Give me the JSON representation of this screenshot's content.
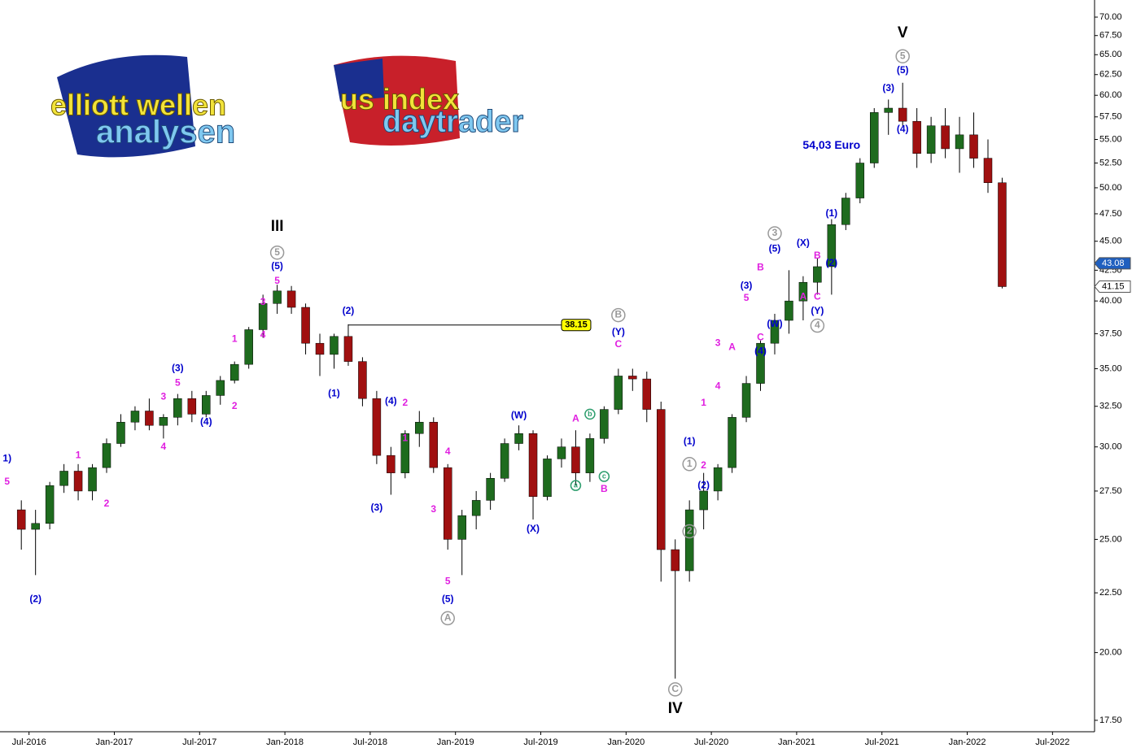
{
  "chart_data": {
    "type": "candlestick",
    "log_scale": true,
    "xlim": [
      "2016-05",
      "2022-10"
    ],
    "ylim": [
      17.11,
      72.4
    ],
    "xticks": [
      {
        "value": "2016-07",
        "label": "Jul-2016"
      },
      {
        "value": "2017-01",
        "label": "Jan-2017"
      },
      {
        "value": "2017-07",
        "label": "Jul-2017"
      },
      {
        "value": "2018-01",
        "label": "Jan-2018"
      },
      {
        "value": "2018-07",
        "label": "Jul-2018"
      },
      {
        "value": "2019-01",
        "label": "Jan-2019"
      },
      {
        "value": "2019-07",
        "label": "Jul-2019"
      },
      {
        "value": "2020-01",
        "label": "Jan-2020"
      },
      {
        "value": "2020-07",
        "label": "Jul-2020"
      },
      {
        "value": "2021-01",
        "label": "Jan-2021"
      },
      {
        "value": "2021-07",
        "label": "Jul-2021"
      },
      {
        "value": "2022-01",
        "label": "Jan-2022"
      },
      {
        "value": "2022-07",
        "label": "Jul-2022"
      }
    ],
    "yticks": [
      {
        "value": 17.5,
        "label": "17.50"
      },
      {
        "value": 20,
        "label": "20.00"
      },
      {
        "value": 22.5,
        "label": "22.50"
      },
      {
        "value": 25,
        "label": "25.00"
      },
      {
        "value": 27.5,
        "label": "27.50"
      },
      {
        "value": 30,
        "label": "30.00"
      },
      {
        "value": 32.5,
        "label": "32.50"
      },
      {
        "value": 35,
        "label": "35.00"
      },
      {
        "value": 37.5,
        "label": "37.50"
      },
      {
        "value": 40,
        "label": "40.00"
      },
      {
        "value": 42.5,
        "label": "42.50"
      },
      {
        "value": 45,
        "label": "45.00"
      },
      {
        "value": 47.5,
        "label": "47.50"
      },
      {
        "value": 50,
        "label": "50.00"
      },
      {
        "value": 52.5,
        "label": "52.50"
      },
      {
        "value": 55,
        "label": "55.00"
      },
      {
        "value": 57.5,
        "label": "57.50"
      },
      {
        "value": 60,
        "label": "60.00"
      },
      {
        "value": 62.5,
        "label": "62.50"
      },
      {
        "value": 65,
        "label": "65.00"
      },
      {
        "value": 67.5,
        "label": "67.50"
      },
      {
        "value": 70,
        "label": "70.00"
      }
    ],
    "up_color": "#1e6b1e",
    "down_color": "#a01010",
    "x": [
      "2016-06",
      "2016-07",
      "2016-08",
      "2016-09",
      "2016-10",
      "2016-11",
      "2016-12",
      "2017-01",
      "2017-02",
      "2017-03",
      "2017-04",
      "2017-05",
      "2017-06",
      "2017-07",
      "2017-08",
      "2017-09",
      "2017-10",
      "2017-11",
      "2017-12",
      "2018-01",
      "2018-02",
      "2018-03",
      "2018-04",
      "2018-05",
      "2018-06",
      "2018-07",
      "2018-08",
      "2018-09",
      "2018-10",
      "2018-11",
      "2018-12",
      "2019-01",
      "2019-02",
      "2019-03",
      "2019-04",
      "2019-05",
      "2019-06",
      "2019-07",
      "2019-08",
      "2019-09",
      "2019-10",
      "2019-11",
      "2019-12",
      "2020-01",
      "2020-02",
      "2020-03",
      "2020-04",
      "2020-05",
      "2020-06",
      "2020-07",
      "2020-08",
      "2020-09",
      "2020-10",
      "2020-11",
      "2020-12",
      "2021-01",
      "2021-02",
      "2021-03",
      "2021-04",
      "2021-05",
      "2021-06",
      "2021-07",
      "2021-08",
      "2021-09",
      "2021-10",
      "2021-11",
      "2021-12",
      "2022-01",
      "2022-02",
      "2022-03"
    ],
    "open": [
      26.5,
      25.5,
      25.8,
      27.8,
      28.6,
      27.5,
      28.8,
      30.2,
      31.5,
      32.2,
      31.3,
      31.8,
      33,
      32,
      33.2,
      34.2,
      35.3,
      37.8,
      39.8,
      40.8,
      39.5,
      36.8,
      36,
      37.3,
      35.5,
      33,
      29.5,
      28.5,
      30.8,
      31.5,
      28.8,
      25,
      26.2,
      27,
      28.2,
      30.2,
      30.8,
      27.2,
      29.3,
      30,
      28.5,
      30.5,
      32.3,
      34.5,
      34.3,
      32.3,
      24.5,
      23.5,
      26.5,
      27.5,
      28.8,
      31.8,
      34,
      36.8,
      38.5,
      40,
      41.5,
      42.8,
      46.5,
      49,
      52.5,
      58,
      58.5,
      57,
      53.5,
      56.5,
      54,
      55.5,
      53,
      50.5
    ],
    "high": [
      27,
      26.5,
      28,
      29,
      29,
      29,
      30.5,
      32,
      32.5,
      33,
      32,
      33.3,
      33.5,
      33.5,
      34.5,
      35.5,
      38,
      40.5,
      41.3,
      41.2,
      39.8,
      37.5,
      37.5,
      38.2,
      35.8,
      33.5,
      30,
      31,
      32.2,
      31.8,
      29,
      26.5,
      27.5,
      28.5,
      30.5,
      31.3,
      31,
      29.5,
      30.5,
      31,
      30.8,
      32.5,
      35,
      35,
      34.8,
      32.8,
      25,
      27,
      28.5,
      29,
      32,
      34.5,
      37,
      39,
      42.5,
      42,
      43.5,
      47,
      49.5,
      53,
      58.5,
      59.5,
      61.5,
      58.5,
      57.5,
      58.5,
      57.5,
      58,
      55,
      51
    ],
    "low": [
      24.5,
      23.3,
      25.5,
      27.4,
      27,
      27,
      28.5,
      30,
      31,
      31,
      30.5,
      31.3,
      31.5,
      31.8,
      32.6,
      34,
      35,
      37.2,
      39,
      39,
      36,
      34.5,
      35,
      35.2,
      32.5,
      29,
      27.3,
      28.2,
      30,
      28.5,
      24.5,
      23.3,
      25.5,
      26.5,
      28,
      29.8,
      26,
      27,
      28.8,
      27.8,
      28,
      30.2,
      32,
      33.5,
      31.5,
      23,
      19,
      23,
      25.5,
      27,
      28.5,
      31.5,
      33.5,
      36,
      37.5,
      38.5,
      40.5,
      40.5,
      46,
      48.5,
      52,
      55.5,
      56.5,
      52,
      52.5,
      53,
      51.5,
      52,
      49.5,
      41
    ],
    "close": [
      25.5,
      25.8,
      27.8,
      28.6,
      27.5,
      28.8,
      30.2,
      31.5,
      32.2,
      31.3,
      31.8,
      33,
      32,
      33.2,
      34.2,
      35.3,
      37.8,
      39.8,
      40.8,
      39.5,
      36.8,
      36,
      37.3,
      35.5,
      33,
      29.5,
      28.5,
      30.8,
      31.5,
      28.8,
      25,
      26.2,
      27,
      28.2,
      30.2,
      30.8,
      27.2,
      29.3,
      30,
      28.5,
      30.5,
      32.3,
      34.5,
      34.3,
      32.3,
      24.5,
      23.5,
      26.5,
      27.5,
      28.8,
      31.8,
      34,
      36.8,
      38.5,
      40,
      41.5,
      42.8,
      46.5,
      49,
      52.5,
      58,
      58.5,
      57,
      53.5,
      56.5,
      54,
      55.5,
      53,
      50.5,
      41.15
    ],
    "hline": {
      "value": 38.15,
      "from": "2018-05",
      "to": "2019-08"
    },
    "price_markers": [
      43.08,
      41.15
    ],
    "price_marker_fills": [
      "#1f5fbf",
      "#ffffff"
    ],
    "price_marker_text_colors": [
      "#ffffff",
      "#000000"
    ],
    "annotations": [
      {
        "text": "1)",
        "x": "2016-05",
        "y": 29.3,
        "color": "#0000cc"
      },
      {
        "text": "5",
        "x": "2016-05",
        "y": 28,
        "color": "#e020e0"
      },
      {
        "text": "(2)",
        "x": "2016-07",
        "y": 22.2,
        "color": "#0000cc"
      },
      {
        "text": "1",
        "x": "2016-10",
        "y": 29.5,
        "color": "#e020e0"
      },
      {
        "text": "2",
        "x": "2016-12",
        "y": 26.8,
        "color": "#e020e0"
      },
      {
        "text": "3",
        "x": "2017-04",
        "y": 33.1,
        "color": "#e020e0"
      },
      {
        "text": "(3)",
        "x": "2017-05",
        "y": 35,
        "color": "#0000cc"
      },
      {
        "text": "5",
        "x": "2017-05",
        "y": 34,
        "color": "#e020e0"
      },
      {
        "text": "4",
        "x": "2017-04",
        "y": 30,
        "color": "#e020e0"
      },
      {
        "text": "(4)",
        "x": "2017-07",
        "y": 31.5,
        "color": "#0000cc"
      },
      {
        "text": "2",
        "x": "2017-09",
        "y": 32.5,
        "color": "#e020e0"
      },
      {
        "text": "1",
        "x": "2017-09",
        "y": 37.1,
        "color": "#e020e0"
      },
      {
        "text": "3",
        "x": "2017-11",
        "y": 39.9,
        "color": "#e020e0"
      },
      {
        "text": "4",
        "x": "2017-11",
        "y": 37.4,
        "color": "#e020e0"
      },
      {
        "text": "5",
        "x": "2017-12",
        "y": 41.6,
        "color": "#e020e0"
      },
      {
        "text": "(5)",
        "x": "2017-12",
        "y": 42.8,
        "color": "#0000cc"
      },
      {
        "text": "5",
        "x": "2017-12",
        "y": 44,
        "color": "#999999",
        "circled": true
      },
      {
        "text": "III",
        "x": "2017-12",
        "y": 46.3,
        "color": "#000000",
        "big": true
      },
      {
        "text": "(2)",
        "x": "2018-05",
        "y": 39.2,
        "color": "#0000cc"
      },
      {
        "text": "(1)",
        "x": "2018-04",
        "y": 33.3,
        "color": "#0000cc"
      },
      {
        "text": "(4)",
        "x": "2018-08",
        "y": 32.8,
        "color": "#0000cc"
      },
      {
        "text": "2",
        "x": "2018-09",
        "y": 32.7,
        "color": "#e020e0"
      },
      {
        "text": "1",
        "x": "2018-09",
        "y": 30.5,
        "color": "#e020e0"
      },
      {
        "text": "(3)",
        "x": "2018-07",
        "y": 26.6,
        "color": "#0000cc"
      },
      {
        "text": "3",
        "x": "2018-11",
        "y": 26.5,
        "color": "#e020e0"
      },
      {
        "text": "4",
        "x": "2018-12",
        "y": 29.7,
        "color": "#e020e0"
      },
      {
        "text": "5",
        "x": "2018-12",
        "y": 23,
        "color": "#e020e0"
      },
      {
        "text": "(5)",
        "x": "2018-12",
        "y": 22.2,
        "color": "#0000cc"
      },
      {
        "text": "A",
        "x": "2018-12",
        "y": 21.4,
        "color": "#999999",
        "circled": true
      },
      {
        "text": "(W)",
        "x": "2019-05",
        "y": 31.9,
        "color": "#0000cc"
      },
      {
        "text": "(X)",
        "x": "2019-06",
        "y": 25.5,
        "color": "#0000cc"
      },
      {
        "text": "A",
        "x": "2019-09",
        "y": 31.7,
        "color": "#e020e0"
      },
      {
        "text": "b",
        "x": "2019-10",
        "y": 32,
        "color": "#2e9e6e",
        "circled": true
      },
      {
        "text": "a",
        "x": "2019-09",
        "y": 27.8,
        "color": "#2e9e6e",
        "circled": true
      },
      {
        "text": "c",
        "x": "2019-11",
        "y": 28.3,
        "color": "#2e9e6e",
        "circled": true
      },
      {
        "text": "B",
        "x": "2019-11",
        "y": 27.6,
        "color": "#e020e0"
      },
      {
        "text": "(Y)",
        "x": "2019-12",
        "y": 37.6,
        "color": "#0000cc"
      },
      {
        "text": "C",
        "x": "2019-12",
        "y": 36.7,
        "color": "#e020e0"
      },
      {
        "text": "B",
        "x": "2019-12",
        "y": 38.9,
        "color": "#999999",
        "circled": true
      },
      {
        "text": "C",
        "x": "2020-04",
        "y": 18.6,
        "color": "#999999",
        "circled": true
      },
      {
        "text": "IV",
        "x": "2020-04",
        "y": 17.9,
        "color": "#000000",
        "big": true
      },
      {
        "text": "1",
        "x": "2020-05",
        "y": 29,
        "color": "#999999",
        "circled": true
      },
      {
        "text": "2",
        "x": "2020-05",
        "y": 25.4,
        "color": "#999999",
        "circled": true
      },
      {
        "text": "(1)",
        "x": "2020-05",
        "y": 30.3,
        "color": "#0000cc"
      },
      {
        "text": "(2)",
        "x": "2020-06",
        "y": 27.8,
        "color": "#0000cc"
      },
      {
        "text": "2",
        "x": "2020-06",
        "y": 28.9,
        "color": "#e020e0"
      },
      {
        "text": "1",
        "x": "2020-06",
        "y": 32.7,
        "color": "#e020e0"
      },
      {
        "text": "4",
        "x": "2020-07",
        "y": 33.8,
        "color": "#e020e0"
      },
      {
        "text": "3",
        "x": "2020-07",
        "y": 36.8,
        "color": "#e020e0"
      },
      {
        "text": "A",
        "x": "2020-08",
        "y": 36.5,
        "color": "#e020e0"
      },
      {
        "text": "(3)",
        "x": "2020-09",
        "y": 41.2,
        "color": "#0000cc"
      },
      {
        "text": "5",
        "x": "2020-09",
        "y": 40.2,
        "color": "#e020e0"
      },
      {
        "text": "B",
        "x": "2020-10",
        "y": 42.7,
        "color": "#e020e0"
      },
      {
        "text": "C",
        "x": "2020-10",
        "y": 37.2,
        "color": "#e020e0"
      },
      {
        "text": "(4)",
        "x": "2020-10",
        "y": 36.2,
        "color": "#0000cc"
      },
      {
        "text": "(W)",
        "x": "2020-11",
        "y": 38.2,
        "color": "#0000cc"
      },
      {
        "text": "(5)",
        "x": "2020-11",
        "y": 44.3,
        "color": "#0000cc"
      },
      {
        "text": "3",
        "x": "2020-11",
        "y": 45.7,
        "color": "#999999",
        "circled": true
      },
      {
        "text": "(X)",
        "x": "2021-01",
        "y": 44.8,
        "color": "#0000cc"
      },
      {
        "text": "B",
        "x": "2021-02",
        "y": 43.7,
        "color": "#e020e0"
      },
      {
        "text": "A",
        "x": "2021-01",
        "y": 40.3,
        "color": "#e020e0"
      },
      {
        "text": "C",
        "x": "2021-02",
        "y": 40.3,
        "color": "#e020e0"
      },
      {
        "text": "(Y)",
        "x": "2021-02",
        "y": 39.2,
        "color": "#0000cc"
      },
      {
        "text": "4",
        "x": "2021-02",
        "y": 38.1,
        "color": "#999999",
        "circled": true
      },
      {
        "text": "(1)",
        "x": "2021-03",
        "y": 47.5,
        "color": "#0000cc"
      },
      {
        "text": "(2)",
        "x": "2021-03",
        "y": 43.1,
        "color": "#0000cc"
      },
      {
        "text": "(3)",
        "x": "2021-07",
        "y": 60.8,
        "color": "#0000cc"
      },
      {
        "text": "(4)",
        "x": "2021-08",
        "y": 56.1,
        "color": "#0000cc"
      },
      {
        "text": "(5)",
        "x": "2021-08",
        "y": 63,
        "color": "#0000cc"
      },
      {
        "text": "5",
        "x": "2021-08",
        "y": 64.8,
        "color": "#999999",
        "circled": true
      },
      {
        "text": "V",
        "x": "2021-08",
        "y": 67.8,
        "color": "#000000",
        "big": true
      },
      {
        "text": "54,03 Euro",
        "x": "2021-03",
        "y": 54.3,
        "color": "#0000cc",
        "bold": true
      }
    ],
    "logo_texts": [
      "elliott wellen",
      "analysen",
      "us index",
      "daytrader"
    ]
  }
}
